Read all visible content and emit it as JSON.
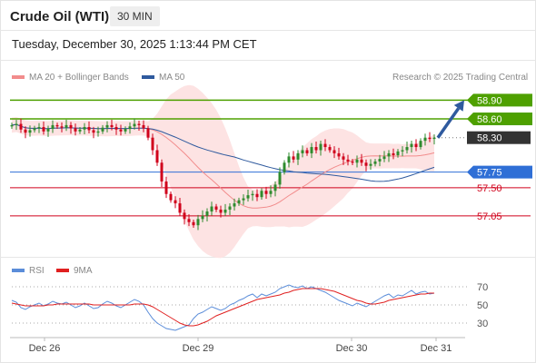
{
  "header": {
    "instrument": "Crude Oil (WTI)",
    "timeframe": "30 MIN",
    "datetime": "Tuesday, December 30, 2025 1:13:44 PM CET"
  },
  "legend": {
    "ma20_label": "MA 20 + Bollinger Bands",
    "ma50_label": "MA 50",
    "credit": "Research © 2025 Trading Central",
    "rsi_label": "RSI",
    "rsi_ma_label": "9MA"
  },
  "colors": {
    "ma20": "#f28c8c",
    "ma50": "#2f5a9e",
    "bollinger_fill": "#fde3e3",
    "resistance": "#4ea000",
    "current_price": "#333333",
    "pivot": "#2f6fd6",
    "support": "#d0021b",
    "candle_up": "#2e8b2e",
    "candle_down": "#d0021b",
    "rsi": "#5b8dd9",
    "rsi_ma": "#e02020"
  },
  "chart_data": [
    {
      "type": "candlestick",
      "x_labels": [
        "Dec 26",
        "Dec 29",
        "Dec 30",
        "Dec 31"
      ],
      "ylim": [
        56.7,
        59.05
      ],
      "levels": [
        {
          "value": 58.9,
          "label": "58.90",
          "kind": "resistance"
        },
        {
          "value": 58.6,
          "label": "58.60",
          "kind": "resistance"
        },
        {
          "value": 58.3,
          "label": "58.30",
          "kind": "current"
        },
        {
          "value": 57.75,
          "label": "57.75",
          "kind": "pivot"
        },
        {
          "value": 57.5,
          "label": "57.50",
          "kind": "support"
        },
        {
          "value": 57.05,
          "label": "57.05",
          "kind": "support"
        }
      ],
      "projection": {
        "from": 58.3,
        "to": 58.9
      },
      "closes": [
        58.5,
        58.52,
        58.43,
        58.38,
        58.42,
        58.45,
        58.47,
        58.4,
        58.44,
        58.5,
        58.48,
        58.46,
        58.5,
        58.45,
        58.4,
        58.43,
        58.47,
        58.42,
        58.38,
        58.4,
        58.46,
        58.5,
        58.47,
        58.43,
        58.4,
        58.44,
        58.48,
        58.52,
        58.5,
        58.45,
        58.3,
        58.1,
        57.9,
        57.6,
        57.4,
        57.3,
        57.25,
        57.1,
        57.0,
        56.95,
        56.9,
        57.0,
        57.05,
        57.12,
        57.2,
        57.15,
        57.1,
        57.15,
        57.2,
        57.25,
        57.3,
        57.33,
        57.38,
        57.4,
        57.35,
        57.45,
        57.4,
        57.45,
        57.55,
        57.75,
        57.9,
        58.0,
        57.95,
        58.05,
        58.1,
        58.05,
        58.15,
        58.1,
        58.2,
        58.15,
        58.1,
        58.05,
        58.0,
        57.95,
        57.92,
        57.9,
        57.95,
        57.9,
        57.85,
        57.88,
        57.92,
        57.96,
        58.0,
        58.05,
        58.02,
        58.08,
        58.1,
        58.15,
        58.2,
        58.15,
        58.25,
        58.3,
        58.28,
        58.3
      ]
    },
    {
      "type": "line",
      "title": "RSI",
      "ylim": [
        20,
        75
      ],
      "ticks": [
        70,
        50,
        30
      ],
      "series": [
        {
          "name": "RSI",
          "values": [
            55,
            53,
            47,
            45,
            48,
            50,
            52,
            49,
            51,
            54,
            52,
            51,
            53,
            50,
            47,
            49,
            52,
            49,
            46,
            47,
            51,
            54,
            52,
            49,
            47,
            50,
            53,
            56,
            54,
            50,
            42,
            35,
            30,
            27,
            24,
            23,
            22,
            24,
            26,
            28,
            35,
            40,
            42,
            45,
            48,
            46,
            44,
            46,
            50,
            52,
            55,
            57,
            60,
            62,
            58,
            62,
            60,
            62,
            64,
            68,
            70,
            72,
            70,
            69,
            71,
            68,
            70,
            68,
            66,
            64,
            61,
            58,
            55,
            53,
            51,
            49,
            52,
            50,
            48,
            51,
            54,
            57,
            60,
            62,
            58,
            61,
            60,
            63,
            66,
            62,
            64,
            65,
            62,
            63
          ]
        },
        {
          "name": "9MA",
          "values": [
            52,
            51,
            50,
            49,
            49,
            49,
            49,
            49,
            50,
            50,
            51,
            51,
            51,
            51,
            51,
            51,
            51,
            51,
            50,
            50,
            50,
            50,
            50,
            50,
            50,
            50,
            50,
            51,
            51,
            51,
            50,
            48,
            45,
            42,
            39,
            36,
            33,
            30,
            28,
            27,
            27,
            28,
            30,
            32,
            35,
            38,
            40,
            42,
            44,
            46,
            48,
            50,
            52,
            54,
            56,
            57,
            58,
            59,
            60,
            61,
            63,
            64,
            66,
            67,
            68,
            68,
            68,
            68,
            68,
            67,
            66,
            65,
            63,
            61,
            59,
            57,
            55,
            54,
            52,
            51,
            51,
            52,
            53,
            55,
            56,
            57,
            58,
            59,
            60,
            61,
            62,
            62,
            63,
            63
          ]
        }
      ]
    }
  ]
}
